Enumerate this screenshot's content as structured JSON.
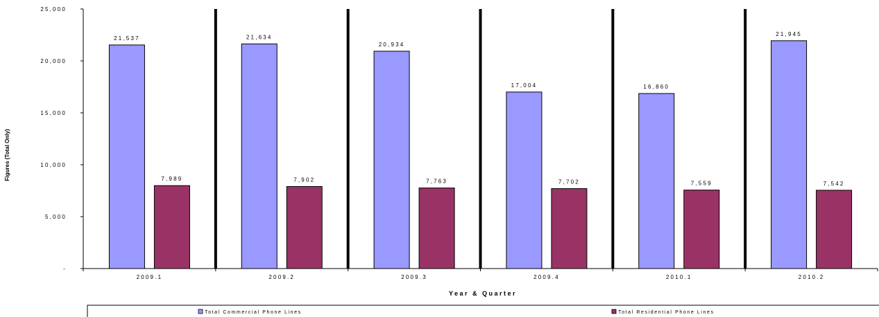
{
  "chart_data": {
    "type": "bar",
    "xlabel": "Year & Quarter",
    "ylabel": "Figures (Total Only)",
    "ylim": [
      0,
      25000
    ],
    "yticks": [
      0,
      5000,
      10000,
      15000,
      20000,
      25000
    ],
    "ytick_labels": [
      "-",
      "5,000",
      "10,000",
      "15,000",
      "20,000",
      "25,000"
    ],
    "categories": [
      "2009.1",
      "2009.2",
      "2009.3",
      "2009.4",
      "2010.1",
      "2010.2"
    ],
    "series": [
      {
        "name": "Total Commercial Phone Lines",
        "color": "#9999FF",
        "values": [
          21537,
          21634,
          20934,
          17004,
          16860,
          21945
        ],
        "labels": [
          "21,537",
          "21,634",
          "20,934",
          "17,004",
          "16,860",
          "21,945"
        ]
      },
      {
        "name": "Total Residential Phone Lines",
        "color": "#993366",
        "values": [
          7989,
          7902,
          7763,
          7702,
          7559,
          7542
        ],
        "labels": [
          "7,989",
          "7,902",
          "7,763",
          "7,702",
          "7,559",
          "7,542"
        ]
      }
    ],
    "grid": false,
    "legend_position": "bottom"
  }
}
